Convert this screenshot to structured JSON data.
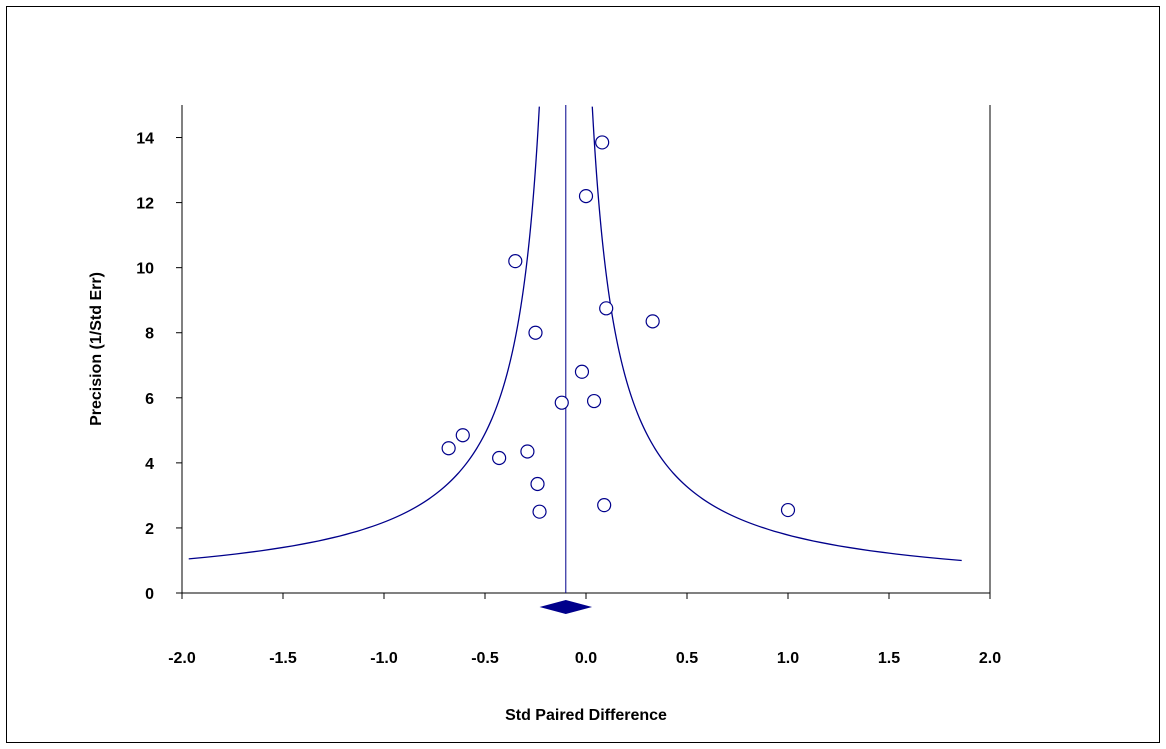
{
  "chart_data": {
    "type": "scatter",
    "title": "",
    "xlabel": "Std Paired Difference",
    "ylabel": "Precision (1/Std Err)",
    "xlim": [
      -2.0,
      2.0
    ],
    "ylim": [
      0,
      15
    ],
    "x_ticks": [
      "-2.0",
      "-1.5",
      "-1.0",
      "-0.5",
      "0.0",
      "0.5",
      "1.0",
      "1.5",
      "2.0"
    ],
    "x_tick_values": [
      -2.0,
      -1.5,
      -1.0,
      -0.5,
      0.0,
      0.5,
      1.0,
      1.5,
      2.0
    ],
    "y_ticks": [
      "0",
      "2",
      "4",
      "6",
      "8",
      "10",
      "12",
      "14"
    ],
    "y_tick_values": [
      0,
      2,
      4,
      6,
      8,
      10,
      12,
      14
    ],
    "grid": false,
    "legend": "none",
    "summary_effect": -0.1,
    "summary_ci": [
      -0.23,
      0.03
    ],
    "funnel_z": 1.96,
    "points": [
      {
        "x": 0.08,
        "y": 13.85
      },
      {
        "x": 0.0,
        "y": 12.2
      },
      {
        "x": -0.35,
        "y": 10.2
      },
      {
        "x": 0.1,
        "y": 8.75
      },
      {
        "x": 0.33,
        "y": 8.35
      },
      {
        "x": -0.25,
        "y": 8.0
      },
      {
        "x": -0.02,
        "y": 6.8
      },
      {
        "x": -0.12,
        "y": 5.85
      },
      {
        "x": 0.04,
        "y": 5.9
      },
      {
        "x": -0.61,
        "y": 4.85
      },
      {
        "x": -0.68,
        "y": 4.45
      },
      {
        "x": -0.43,
        "y": 4.15
      },
      {
        "x": -0.29,
        "y": 4.35
      },
      {
        "x": -0.24,
        "y": 3.35
      },
      {
        "x": -0.23,
        "y": 2.5
      },
      {
        "x": 0.09,
        "y": 2.7
      },
      {
        "x": 1.0,
        "y": 2.55
      }
    ],
    "colors": {
      "funnel": "#00008B",
      "points_stroke": "#00008B",
      "diamond": "#00008B",
      "axis": "#000000"
    }
  }
}
